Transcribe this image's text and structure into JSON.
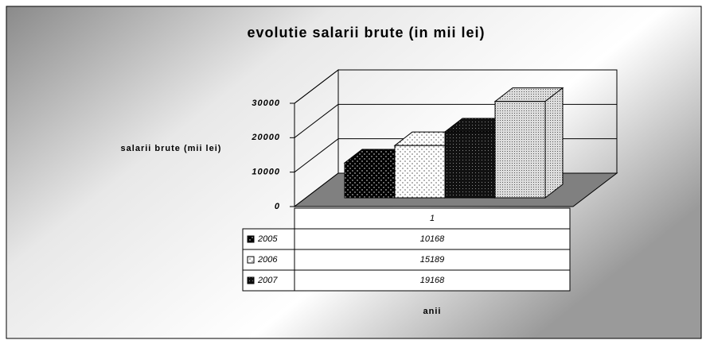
{
  "chart_data": {
    "type": "bar3d",
    "title": "evolutie salarii brute (in mii lei)",
    "y_label": "salarii brute (mii lei)",
    "x_label": "anii",
    "categories": [
      "1"
    ],
    "series": [
      {
        "name": "2005",
        "color": "#000000",
        "values": [
          10168
        ]
      },
      {
        "name": "2006",
        "color": "#ffffff",
        "values": [
          15189
        ]
      },
      {
        "name": "2007",
        "color": "#222222",
        "values": [
          19168
        ]
      },
      {
        "name": null,
        "color": "#bbbbbb",
        "values": [
          28000
        ]
      }
    ],
    "ylim": [
      0,
      30000
    ],
    "yticks": [
      0,
      10000,
      20000,
      30000
    ],
    "grid": true
  }
}
